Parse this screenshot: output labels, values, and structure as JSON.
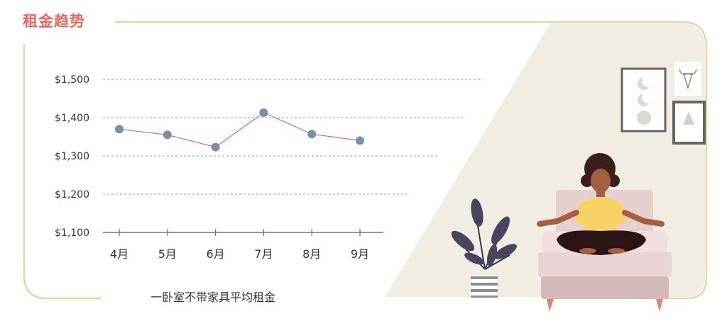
{
  "heading": "租金趋势",
  "caption": "一卧室不带家具平均租金",
  "colors": {
    "accent": "#e8675a",
    "frame": "#e2d6ad",
    "panel": "#f2ede2",
    "marker": "#7591a4",
    "line": "#e8675a",
    "grid": "#9a9a9a"
  },
  "chart_data": {
    "type": "line",
    "title": "租金趋势",
    "subtitle": "一卧室不带家具平均租金",
    "xlabel": "",
    "ylabel": "",
    "categories": [
      "4月",
      "5月",
      "6月",
      "7月",
      "8月",
      "9月"
    ],
    "series": [
      {
        "values": [
          1370,
          1355,
          1323,
          1413,
          1357,
          1340
        ]
      }
    ],
    "ylim": [
      1100,
      1500
    ],
    "yticks": [
      1100,
      1200,
      1300,
      1400,
      1500
    ],
    "ytick_labels": [
      "$1,100",
      "$1,200",
      "$1,300",
      "$1,400",
      "$1,500"
    ],
    "grid": "horizontal-dashed",
    "legend": "none"
  },
  "illustration": {
    "subject": "woman-meditating-on-sofa",
    "items": [
      "potted-plant-icon",
      "moon-phase-poster-icon",
      "bull-skull-icon",
      "triangle-poster-icon"
    ]
  }
}
